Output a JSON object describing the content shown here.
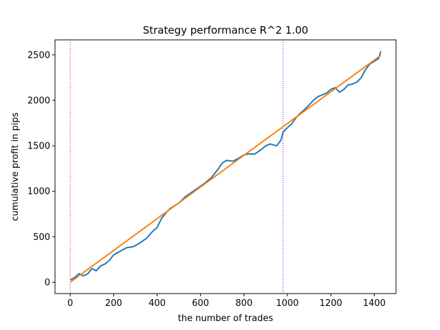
{
  "chart_data": {
    "type": "line",
    "title": "Strategy performance R^2 1.00",
    "xlabel": "the number of trades",
    "ylabel": "cumulative profit in pips",
    "xlim": [
      -70,
      1500
    ],
    "ylim": [
      -125,
      2665
    ],
    "xticks": [
      0,
      200,
      400,
      600,
      800,
      1000,
      1200,
      1400
    ],
    "yticks": [
      0,
      500,
      1000,
      1500,
      2000,
      2500
    ],
    "grid": false,
    "legend": "none",
    "vlines": [
      {
        "x": 0,
        "color": "#ff0000",
        "style": "dotted"
      },
      {
        "x": 980,
        "color": "#7f00ff",
        "style": "dotted"
      }
    ],
    "series": [
      {
        "color": "#1f77b4",
        "x": [
          0,
          20,
          40,
          60,
          80,
          100,
          120,
          140,
          160,
          180,
          200,
          230,
          260,
          290,
          320,
          350,
          380,
          400,
          420,
          440,
          460,
          480,
          500,
          530,
          560,
          590,
          620,
          650,
          680,
          700,
          720,
          750,
          780,
          800,
          820,
          850,
          880,
          900,
          920,
          950,
          970,
          980,
          1000,
          1020,
          1040,
          1060,
          1080,
          1100,
          1120,
          1140,
          1160,
          1180,
          1200,
          1220,
          1240,
          1260,
          1280,
          1300,
          1320,
          1340,
          1360,
          1380,
          1400,
          1420,
          1430
        ],
        "y": [
          25,
          50,
          95,
          70,
          90,
          150,
          125,
          180,
          200,
          240,
          300,
          340,
          380,
          390,
          430,
          480,
          560,
          600,
          700,
          760,
          810,
          840,
          870,
          940,
          990,
          1040,
          1090,
          1150,
          1240,
          1310,
          1340,
          1330,
          1370,
          1400,
          1410,
          1410,
          1460,
          1500,
          1520,
          1500,
          1560,
          1650,
          1700,
          1740,
          1810,
          1860,
          1900,
          1950,
          2000,
          2040,
          2060,
          2080,
          2120,
          2140,
          2090,
          2120,
          2170,
          2180,
          2200,
          2250,
          2340,
          2400,
          2430,
          2460,
          2540
        ]
      },
      {
        "color": "#ff7f0e",
        "x": [
          0,
          1430
        ],
        "y": [
          0,
          2495
        ]
      }
    ]
  }
}
